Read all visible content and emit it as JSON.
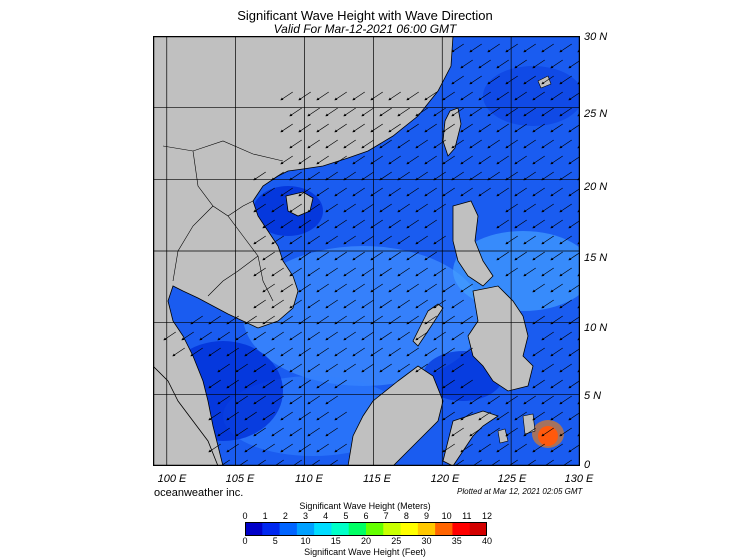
{
  "title": "Significant Wave Height with Wave Direction",
  "subtitle": "Valid For Mar-12-2021 06:00 GMT",
  "credit": "oceanweather inc.",
  "plotted": "Plotted at Mar 12, 2021 02:05 GMT",
  "lat_labels": [
    "30 N",
    "25 N",
    "20 N",
    "15 N",
    "10 N",
    "5 N",
    "0"
  ],
  "lon_labels": [
    "100 E",
    "105 E",
    "110 E",
    "115 E",
    "120 E",
    "125 E",
    "130 E"
  ],
  "extent": {
    "lon_min": 99,
    "lon_max": 130,
    "lat_min": 0,
    "lat_max": 30
  },
  "colorbar": {
    "title_top": "Significant Wave Height (Meters)",
    "title_bottom": "Significant Wave Height (Feet)",
    "meters_ticks": [
      "0",
      "1",
      "2",
      "3",
      "4",
      "5",
      "6",
      "7",
      "8",
      "9",
      "10",
      "11",
      "12"
    ],
    "feet_ticks": [
      "0",
      "5",
      "10",
      "15",
      "20",
      "25",
      "30",
      "35",
      "40"
    ],
    "colors": [
      "#0000c8",
      "#0028f0",
      "#0064ff",
      "#00a0ff",
      "#00dcff",
      "#00ffc8",
      "#00ff64",
      "#64ff00",
      "#c8ff00",
      "#ffff00",
      "#ffc800",
      "#ff6400",
      "#ff0000",
      "#d20000"
    ]
  },
  "colors": {
    "land": "#c0c0c0",
    "sea_dark": "#0030d8",
    "sea_mid": "#1a5cf0",
    "sea_light": "#3f8cff"
  }
}
